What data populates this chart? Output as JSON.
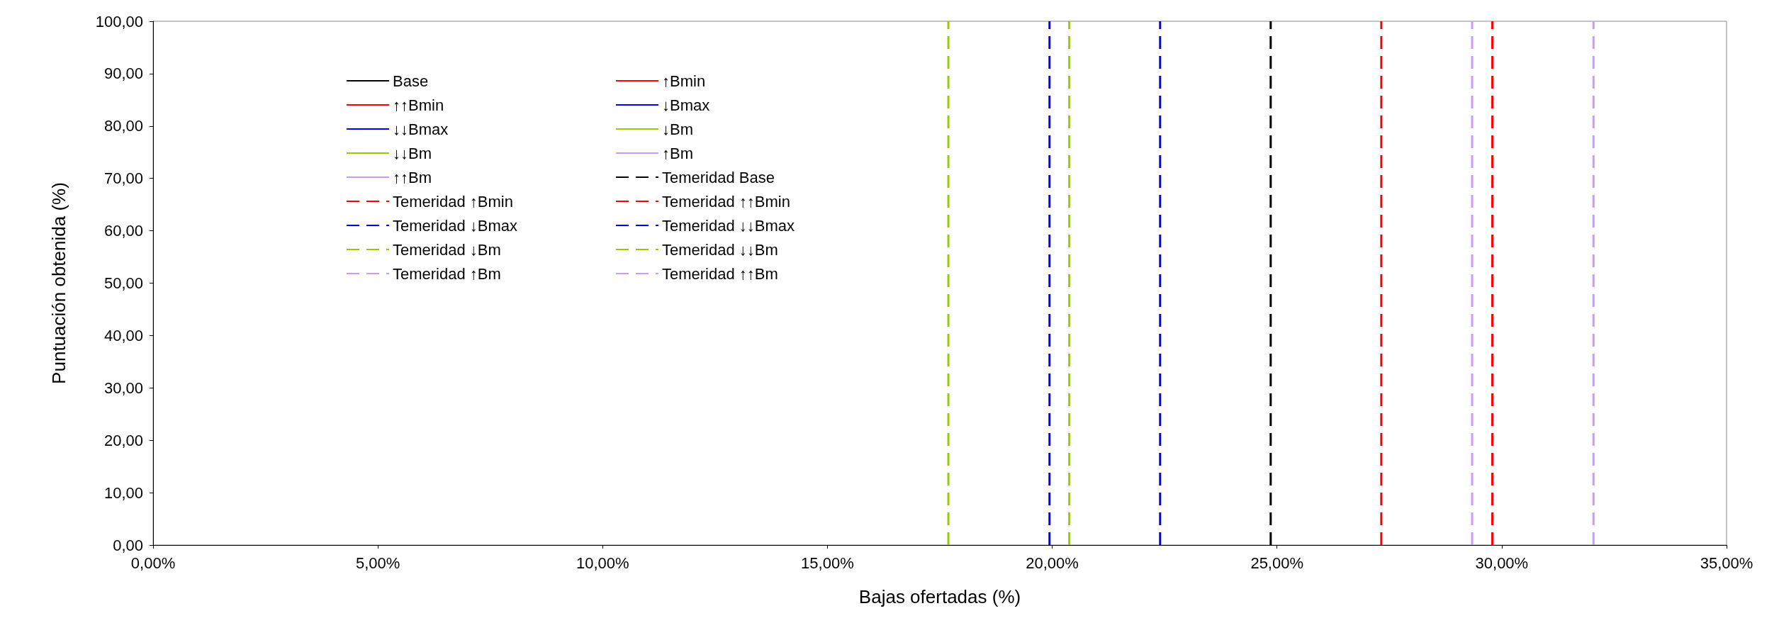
{
  "chart_data": {
    "type": "line",
    "xlabel": "Bajas ofertadas (%)",
    "ylabel": "Puntuación obtenida (%)",
    "xlim": [
      0,
      35
    ],
    "xticks": [
      {
        "value": 0,
        "label": "0,00%"
      },
      {
        "value": 5,
        "label": "5,00%"
      },
      {
        "value": 10,
        "label": "10,00%"
      },
      {
        "value": 15,
        "label": "15,00%"
      },
      {
        "value": 20,
        "label": "20,00%"
      },
      {
        "value": 25,
        "label": "25,00%"
      },
      {
        "value": 30,
        "label": "30,00%"
      },
      {
        "value": 35,
        "label": "35,00%"
      }
    ],
    "ylim": [
      0,
      100
    ],
    "yticks": [
      {
        "value": 0,
        "label": "0,00"
      },
      {
        "value": 10,
        "label": "10,00"
      },
      {
        "value": 20,
        "label": "20,00"
      },
      {
        "value": 30,
        "label": "30,00"
      },
      {
        "value": 40,
        "label": "40,00"
      },
      {
        "value": 50,
        "label": "50,00"
      },
      {
        "value": 60,
        "label": "60,00"
      },
      {
        "value": 70,
        "label": "70,00"
      },
      {
        "value": 80,
        "label": "80,00"
      },
      {
        "value": 90,
        "label": "90,00"
      },
      {
        "value": 100,
        "label": "100,00"
      }
    ],
    "grid": false,
    "legend": "top left",
    "marker": "none",
    "series": [
      {
        "name": "Base",
        "color": "#000000",
        "line_style": "solid"
      },
      {
        "name": "↑Bmin",
        "color": "#ff0000",
        "line_style": "solid"
      },
      {
        "name": "↑↑Bmin",
        "color": "#ff0000",
        "line_style": "solid"
      },
      {
        "name": "↓Bmax",
        "color": "#0000ff",
        "line_style": "solid"
      },
      {
        "name": "↓↓Bmax",
        "color": "#0000ff",
        "line_style": "solid"
      },
      {
        "name": "↓Bm",
        "color": "#99cc00",
        "line_style": "solid"
      },
      {
        "name": "↓↓Bm",
        "color": "#99cc00",
        "line_style": "solid"
      },
      {
        "name": "↑Bm",
        "color": "#cc99ff",
        "line_style": "solid"
      },
      {
        "name": "↑↑Bm",
        "color": "#cc99ff",
        "line_style": "solid"
      },
      {
        "name": "Temeridad Base",
        "color": "#000000",
        "x": [
          24.86,
          24.86
        ],
        "values": [
          0,
          100
        ],
        "line_style": "dashed"
      },
      {
        "name": "Temeridad ↑Bmin",
        "color": "#ff0000",
        "x": [
          27.32,
          27.32
        ],
        "values": [
          0,
          100
        ],
        "line_style": "dashed"
      },
      {
        "name": "Temeridad ↑↑Bmin",
        "color": "#ff0000",
        "x": [
          29.79,
          29.79
        ],
        "values": [
          0,
          100
        ],
        "line_style": "dashed"
      },
      {
        "name": "Temeridad ↓Bmax",
        "color": "#0000ff",
        "x": [
          22.4,
          22.4
        ],
        "values": [
          0,
          100
        ],
        "line_style": "dashed"
      },
      {
        "name": "Temeridad ↓↓Bmax",
        "color": "#0000ff",
        "x": [
          19.94,
          19.94
        ],
        "values": [
          0,
          100
        ],
        "line_style": "dashed"
      },
      {
        "name": "Temeridad ↓Bm",
        "color": "#99cc00",
        "x": [
          20.38,
          20.38
        ],
        "values": [
          0,
          100
        ],
        "line_style": "dashed"
      },
      {
        "name": "Temeridad ↓↓Bm",
        "color": "#99cc00",
        "x": [
          17.69,
          17.69
        ],
        "values": [
          0,
          100
        ],
        "line_style": "dashed"
      },
      {
        "name": "Temeridad ↑Bm",
        "color": "#cc99ff",
        "x": [
          29.34,
          29.34
        ],
        "values": [
          0,
          100
        ],
        "line_style": "dashed"
      },
      {
        "name": "Temeridad ↑↑Bm",
        "color": "#cc99ff",
        "x": [
          32.04,
          32.04
        ],
        "values": [
          0,
          100
        ],
        "line_style": "dashed"
      }
    ]
  }
}
